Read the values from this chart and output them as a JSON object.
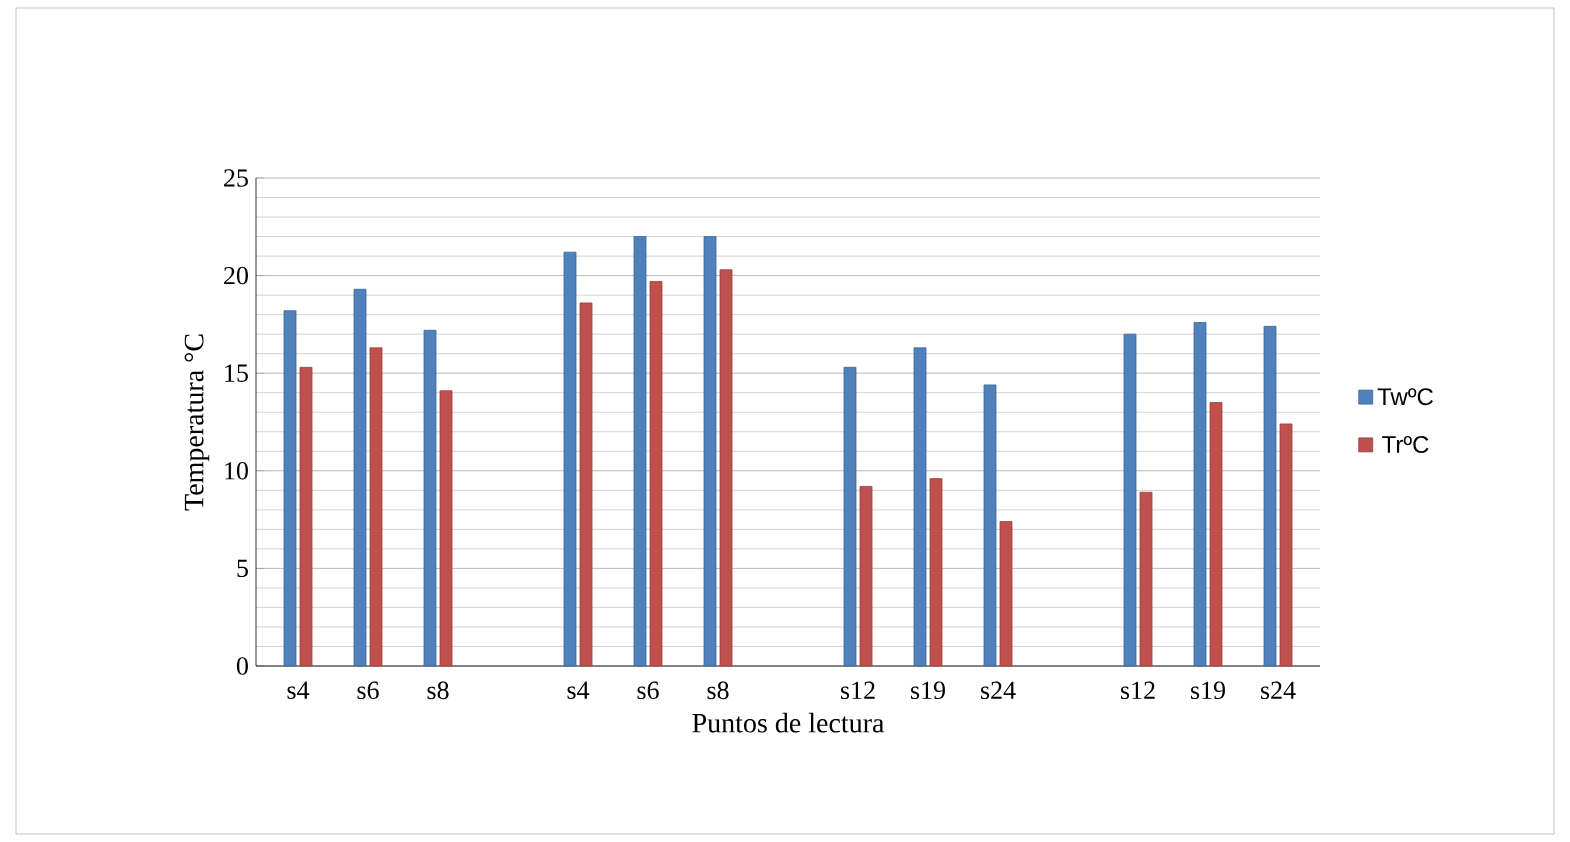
{
  "chart_data": {
    "type": "bar",
    "xlabel": "Puntos de lectura",
    "ylabel": "Temperatura °C",
    "categories": [
      "s4",
      "s6",
      "s8",
      null,
      "s4",
      "s6",
      "s8",
      null,
      "s12",
      "s19",
      "s24",
      null,
      "s12",
      "s19",
      "s24"
    ],
    "series": [
      {
        "name": "TwºC",
        "color": "#4f81bd",
        "values": [
          18.2,
          19.3,
          17.2,
          null,
          21.2,
          22.0,
          22.0,
          null,
          15.3,
          16.3,
          14.4,
          null,
          17.0,
          17.6,
          17.4
        ]
      },
      {
        "name": "TrºC",
        "color": "#c0504d",
        "values": [
          15.3,
          16.3,
          14.1,
          null,
          18.6,
          19.7,
          20.3,
          null,
          9.2,
          9.6,
          7.4,
          null,
          8.9,
          13.5,
          12.4
        ]
      }
    ],
    "ylim": [
      0,
      25
    ],
    "yticks": [
      0,
      5,
      10,
      15,
      20,
      25
    ],
    "grid": "y",
    "legend": "right"
  }
}
